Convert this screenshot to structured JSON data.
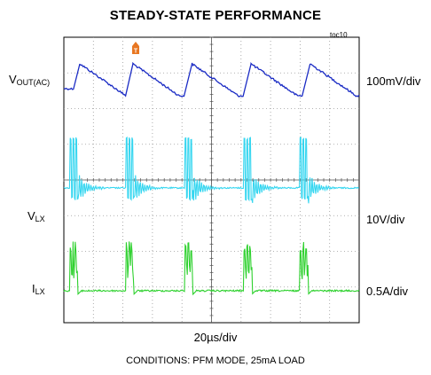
{
  "chart_data": {
    "type": "line",
    "title": "STEADY-STATE PERFORMANCE",
    "figure_id": "toc10",
    "trigger_marker": "T",
    "x_scale": "20µs/div",
    "conditions": "CONDITIONS: PFM MODE, 25mA LOAD",
    "grid": true,
    "divisions": {
      "x": 10,
      "y": 8
    },
    "channels": [
      {
        "name_main": "V",
        "name_sub": "OUT(AC)",
        "scale": "100mV/div",
        "color": "#1a2bc4",
        "description": "sawtooth ripple",
        "pulse_times_div": [
          0.3,
          2.1,
          4.1,
          6.1,
          8.1
        ]
      },
      {
        "name_main": "V",
        "name_sub": "LX",
        "scale": "10V/div",
        "color": "#35d6f0",
        "description": "switching bursts with ringing",
        "pulse_times_div": [
          0.2,
          2.1,
          4.1,
          6.1,
          8.0
        ]
      },
      {
        "name_main": "I",
        "name_sub": "LX",
        "scale": "0.5A/div",
        "color": "#2ed12e",
        "description": "inductor current pulses",
        "pulse_times_div": [
          0.2,
          2.1,
          4.1,
          6.1,
          8.0
        ]
      }
    ]
  }
}
